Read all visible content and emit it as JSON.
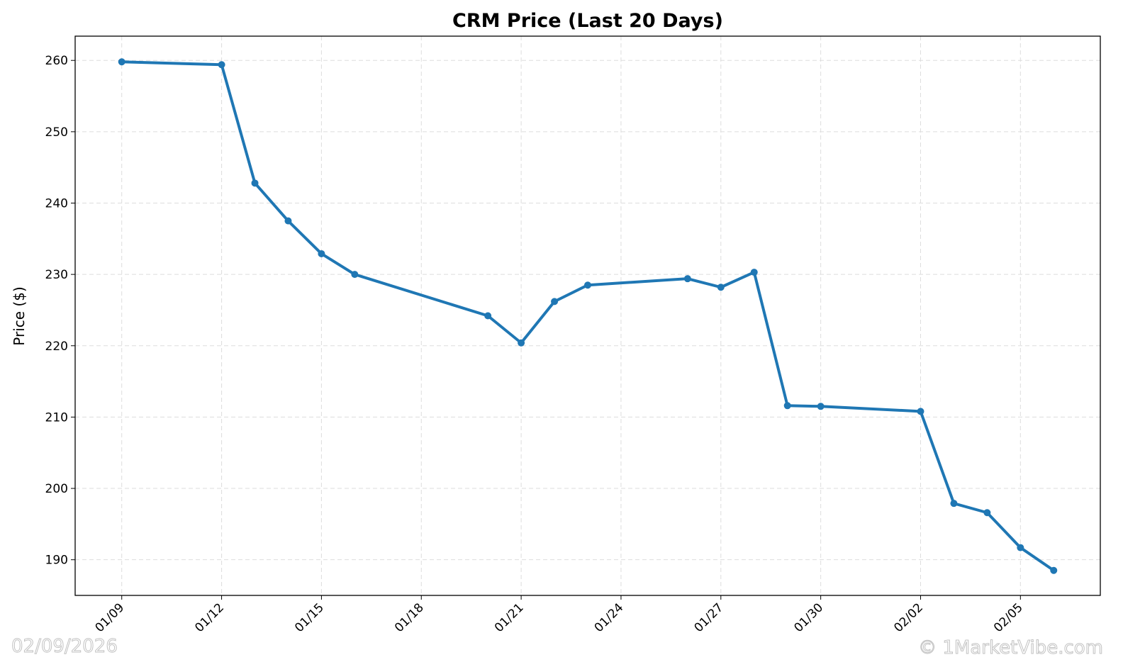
{
  "chart_data": {
    "type": "line",
    "title": "CRM Price (Last 20 Days)",
    "xlabel": "",
    "ylabel": "Price ($)",
    "x": [
      "01/09",
      "01/12",
      "01/13",
      "01/14",
      "01/15",
      "01/16",
      "01/20",
      "01/21",
      "01/22",
      "01/23",
      "01/26",
      "01/27",
      "01/28",
      "01/29",
      "01/30",
      "02/02",
      "02/03",
      "02/04",
      "02/05",
      "02/06"
    ],
    "x_day_offsets": [
      0,
      3,
      4,
      5,
      6,
      7,
      11,
      12,
      13,
      14,
      17,
      18,
      19,
      20,
      21,
      24,
      25,
      26,
      27,
      28
    ],
    "series": [
      {
        "name": "CRM",
        "color": "#1f77b4",
        "values": [
          259.8,
          259.4,
          242.8,
          237.5,
          232.9,
          230.0,
          224.2,
          220.4,
          226.2,
          228.5,
          229.4,
          228.2,
          230.3,
          211.6,
          211.5,
          210.8,
          197.9,
          196.6,
          191.7,
          188.5
        ]
      }
    ],
    "xticks": [
      "01/09",
      "01/12",
      "01/15",
      "01/18",
      "01/21",
      "01/24",
      "01/27",
      "01/30",
      "02/02",
      "02/05"
    ],
    "xtick_day_offsets": [
      0,
      3,
      6,
      9,
      12,
      15,
      18,
      21,
      24,
      27
    ],
    "xlim_days": [
      -1.4,
      29.4
    ],
    "yticks": [
      190,
      200,
      210,
      220,
      230,
      240,
      250,
      260
    ],
    "ylim": [
      185.0,
      263.4
    ],
    "grid": true
  },
  "watermark": {
    "date": "02/09/2026",
    "site": "© 1MarketVibe.com"
  }
}
